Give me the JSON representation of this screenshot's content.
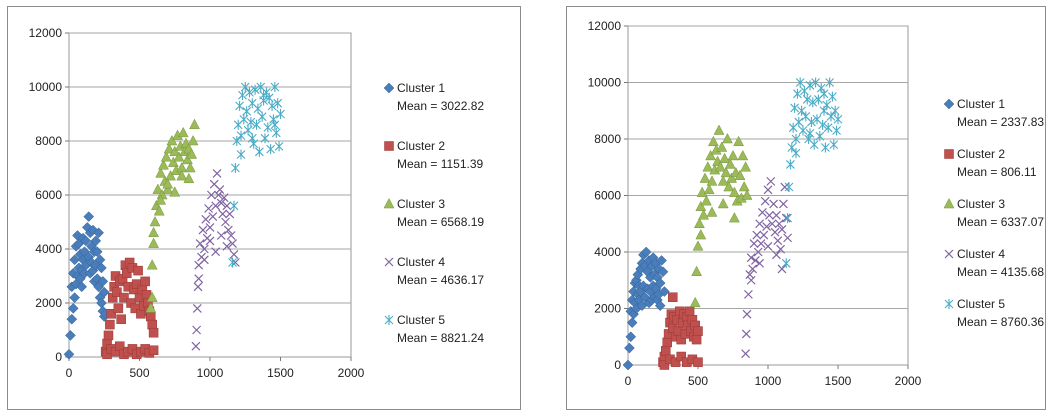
{
  "chart_data": [
    {
      "type": "scatter",
      "xlim": [
        0,
        2000
      ],
      "ylim": [
        0,
        12000
      ],
      "xticks": [
        "0",
        "500",
        "1000",
        "1500",
        "2000"
      ],
      "yticks": [
        "0",
        "2000",
        "4000",
        "6000",
        "8000",
        "10000",
        "12000"
      ],
      "grid": true,
      "legend_position": "right",
      "series": [
        {
          "name": "Cluster 1",
          "mean_label": "Mean = 3022.82",
          "marker": "diamond",
          "color": "#4a7ebb",
          "x": [
            0,
            10,
            20,
            20,
            30,
            30,
            40,
            40,
            50,
            50,
            60,
            60,
            70,
            70,
            80,
            80,
            90,
            90,
            100,
            100,
            110,
            110,
            120,
            120,
            130,
            140,
            140,
            150,
            150,
            160,
            160,
            170,
            170,
            180,
            180,
            190,
            190,
            200,
            200,
            210,
            210,
            220,
            220,
            230,
            230,
            240,
            240,
            250,
            250,
            260
          ],
          "y": [
            100,
            800,
            1400,
            2600,
            1800,
            3100,
            2200,
            3600,
            2700,
            4100,
            3000,
            4500,
            3300,
            4200,
            2900,
            3800,
            3200,
            2600,
            3600,
            4400,
            3900,
            3100,
            4300,
            3400,
            4800,
            5200,
            3700,
            4600,
            3100,
            4100,
            3500,
            4700,
            3200,
            3900,
            2800,
            4300,
            3400,
            3900,
            2900,
            4600,
            2600,
            3600,
            2200,
            3300,
            2000,
            2800,
            1700,
            2400,
            1500,
            1600
          ]
        },
        {
          "name": "Cluster 2",
          "mean_label": "Mean = 1151.39",
          "marker": "square",
          "color": "#c0504d",
          "x": [
            260,
            270,
            280,
            290,
            300,
            310,
            320,
            330,
            340,
            350,
            360,
            370,
            380,
            390,
            400,
            410,
            420,
            430,
            440,
            450,
            460,
            470,
            480,
            490,
            500,
            510,
            520,
            530,
            540,
            550,
            560,
            570,
            580,
            590,
            600,
            270,
            300,
            330,
            360,
            390,
            420,
            450,
            480,
            510,
            540,
            570,
            600
          ],
          "y": [
            200,
            500,
            800,
            1200,
            1600,
            2200,
            2600,
            3000,
            2400,
            1800,
            2800,
            1400,
            2900,
            2200,
            3400,
            3100,
            2600,
            3500,
            2000,
            3300,
            2500,
            1800,
            2700,
            3200,
            2200,
            1600,
            2500,
            1900,
            2800,
            2300,
            2000,
            1700,
            1500,
            1200,
            900,
            100,
            300,
            200,
            400,
            100,
            200,
            300,
            100,
            200,
            300,
            150,
            250
          ]
        },
        {
          "name": "Cluster 3",
          "mean_label": "Mean = 6568.19",
          "marker": "triangle",
          "color": "#9bbb59",
          "x": [
            580,
            590,
            600,
            610,
            620,
            630,
            640,
            650,
            660,
            670,
            680,
            690,
            700,
            710,
            720,
            730,
            740,
            750,
            760,
            770,
            780,
            790,
            800,
            810,
            820,
            830,
            840,
            850,
            860,
            870,
            880,
            890,
            600,
            650,
            700,
            750,
            800,
            850,
            590
          ],
          "y": [
            1800,
            3400,
            4200,
            5000,
            5600,
            6200,
            5400,
            6800,
            6000,
            7100,
            6500,
            7400,
            6200,
            7700,
            6700,
            8000,
            7200,
            7600,
            6900,
            8200,
            7400,
            7800,
            7000,
            8300,
            7600,
            7900,
            7300,
            7700,
            7000,
            7500,
            8000,
            8600,
            4600,
            5800,
            6400,
            6100,
            6700,
            6600,
            2200
          ]
        },
        {
          "name": "Cluster 4",
          "mean_label": "Mean = 4636.17",
          "marker": "x",
          "color": "#8064a2",
          "x": [
            900,
            905,
            910,
            915,
            920,
            930,
            940,
            950,
            960,
            970,
            980,
            990,
            1000,
            1010,
            1020,
            1030,
            1040,
            1050,
            1060,
            1070,
            1080,
            1090,
            1100,
            1110,
            1120,
            1130,
            1140,
            1150,
            1160,
            1170,
            1180,
            920,
            960,
            1000,
            1040,
            1080,
            1120
          ],
          "y": [
            400,
            1000,
            1800,
            2600,
            3400,
            4200,
            3700,
            4700,
            4000,
            5100,
            4400,
            5500,
            4800,
            6000,
            5200,
            6400,
            5600,
            6800,
            6000,
            6200,
            5700,
            5300,
            5900,
            5000,
            5600,
            4700,
            5300,
            4500,
            4200,
            3800,
            3500,
            2900,
            3600,
            4300,
            3900,
            4500,
            4100
          ]
        },
        {
          "name": "Cluster 5",
          "mean_label": "Mean = 8821.24",
          "marker": "asterisk",
          "color": "#4bacc6",
          "x": [
            1160,
            1170,
            1180,
            1190,
            1200,
            1210,
            1220,
            1230,
            1240,
            1250,
            1260,
            1270,
            1280,
            1290,
            1300,
            1310,
            1320,
            1330,
            1340,
            1350,
            1360,
            1370,
            1380,
            1390,
            1400,
            1410,
            1420,
            1430,
            1440,
            1450,
            1460,
            1470,
            1480,
            1490,
            1500,
            1220,
            1300,
            1380,
            1460
          ],
          "y": [
            3500,
            5600,
            7000,
            8000,
            8600,
            9300,
            8200,
            9700,
            8800,
            10000,
            9100,
            8400,
            9800,
            8700,
            9400,
            7900,
            9900,
            8600,
            9200,
            7600,
            10000,
            8900,
            9500,
            8100,
            9800,
            8500,
            9600,
            7700,
            9300,
            8800,
            10000,
            8300,
            9400,
            7800,
            9000,
            7500,
            8100,
            9700,
            8600
          ]
        }
      ]
    },
    {
      "type": "scatter",
      "xlim": [
        0,
        2000
      ],
      "ylim": [
        0,
        12000
      ],
      "xticks": [
        "0",
        "500",
        "1000",
        "1500",
        "2000"
      ],
      "yticks": [
        "0",
        "2000",
        "4000",
        "6000",
        "8000",
        "10000",
        "12000"
      ],
      "grid": true,
      "legend_position": "right",
      "series": [
        {
          "name": "Cluster 1",
          "mean_label": "Mean = 2337.83",
          "marker": "diamond",
          "color": "#4a7ebb",
          "x": [
            0,
            10,
            20,
            20,
            30,
            30,
            40,
            40,
            50,
            50,
            60,
            60,
            70,
            70,
            80,
            80,
            90,
            90,
            100,
            100,
            110,
            110,
            120,
            120,
            130,
            140,
            140,
            150,
            150,
            160,
            160,
            170,
            170,
            180,
            180,
            190,
            190,
            200,
            200,
            210,
            210,
            220,
            220,
            230,
            230,
            240,
            250,
            260
          ],
          "y": [
            0,
            600,
            1000,
            1900,
            1500,
            2300,
            1800,
            2600,
            2200,
            2900,
            2000,
            3000,
            2500,
            3200,
            2300,
            2800,
            2600,
            3400,
            2100,
            3600,
            2800,
            3900,
            2400,
            3500,
            4000,
            3300,
            2700,
            3700,
            2200,
            3100,
            2600,
            3500,
            2300,
            3800,
            2800,
            3200,
            2400,
            3600,
            2700,
            3100,
            2300,
            3400,
            2500,
            2900,
            2100,
            3700,
            3300,
            2600
          ]
        },
        {
          "name": "Cluster 2",
          "mean_label": "Mean = 806.11",
          "marker": "square",
          "color": "#c0504d",
          "x": [
            250,
            260,
            270,
            280,
            290,
            300,
            310,
            320,
            330,
            340,
            350,
            360,
            370,
            380,
            390,
            400,
            410,
            420,
            430,
            440,
            450,
            460,
            470,
            480,
            490,
            500,
            260,
            300,
            340,
            380,
            420,
            460,
            500,
            320
          ],
          "y": [
            100,
            300,
            500,
            800,
            1100,
            1500,
            1800,
            1300,
            1700,
            1000,
            1600,
            1200,
            1900,
            900,
            1500,
            1800,
            1100,
            1700,
            1400,
            1900,
            1200,
            1600,
            1000,
            1400,
            900,
            1200,
            0,
            200,
            100,
            300,
            100,
            200,
            100,
            2400
          ]
        },
        {
          "name": "Cluster 3",
          "mean_label": "Mean = 6337.07",
          "marker": "triangle",
          "color": "#9bbb59",
          "x": [
            480,
            490,
            500,
            510,
            520,
            530,
            540,
            550,
            560,
            570,
            580,
            590,
            600,
            610,
            620,
            630,
            640,
            650,
            660,
            670,
            680,
            690,
            700,
            710,
            720,
            730,
            740,
            750,
            760,
            770,
            780,
            790,
            800,
            810,
            820,
            830,
            840,
            850,
            520,
            600,
            680,
            760
          ],
          "y": [
            2200,
            3300,
            4200,
            5000,
            5600,
            6100,
            5300,
            6600,
            5800,
            7000,
            6200,
            7400,
            6500,
            7900,
            6900,
            7600,
            7200,
            8300,
            7000,
            7700,
            6500,
            7300,
            6800,
            8000,
            6300,
            7100,
            6600,
            7400,
            6100,
            6800,
            5800,
            7900,
            6700,
            5900,
            7400,
            6300,
            7000,
            6000,
            4600,
            5400,
            5700,
            5200
          ]
        },
        {
          "name": "Cluster 4",
          "mean_label": "Mean = 4135.68",
          "marker": "x",
          "color": "#8064a2",
          "x": [
            840,
            845,
            850,
            860,
            870,
            880,
            890,
            900,
            910,
            920,
            930,
            940,
            950,
            960,
            970,
            980,
            990,
            1000,
            1010,
            1020,
            1030,
            1040,
            1050,
            1060,
            1070,
            1080,
            1090,
            1100,
            1110,
            1120,
            1130,
            1140,
            880,
            940,
            1000,
            1060,
            1100
          ],
          "y": [
            400,
            1100,
            1800,
            2500,
            3200,
            3800,
            3400,
            4300,
            3700,
            4600,
            4000,
            5000,
            4300,
            5400,
            4600,
            5800,
            4900,
            6200,
            5300,
            6500,
            5000,
            5700,
            4700,
            5300,
            4400,
            5000,
            4100,
            4800,
            5700,
            6300,
            5200,
            4500,
            3000,
            3600,
            4200,
            3900,
            3400
          ]
        },
        {
          "name": "Cluster 5",
          "mean_label": "Mean = 8760.36",
          "marker": "asterisk",
          "color": "#4bacc6",
          "x": [
            1130,
            1140,
            1150,
            1160,
            1170,
            1180,
            1190,
            1200,
            1210,
            1220,
            1230,
            1240,
            1250,
            1260,
            1270,
            1280,
            1290,
            1300,
            1310,
            1320,
            1330,
            1340,
            1350,
            1360,
            1370,
            1380,
            1390,
            1400,
            1410,
            1420,
            1430,
            1440,
            1450,
            1460,
            1470,
            1480,
            1490,
            1500,
            1200,
            1300,
            1400
          ],
          "y": [
            3600,
            5200,
            6300,
            7100,
            7700,
            8400,
            9100,
            8000,
            9600,
            8600,
            10000,
            9000,
            8300,
            9700,
            8800,
            9400,
            8000,
            9900,
            8600,
            9300,
            7800,
            10000,
            8700,
            9400,
            8100,
            9800,
            8500,
            9600,
            7700,
            9200,
            8400,
            10000,
            8800,
            9500,
            7800,
            9000,
            8300,
            8700,
            7500,
            8200,
            9000
          ]
        }
      ]
    }
  ]
}
